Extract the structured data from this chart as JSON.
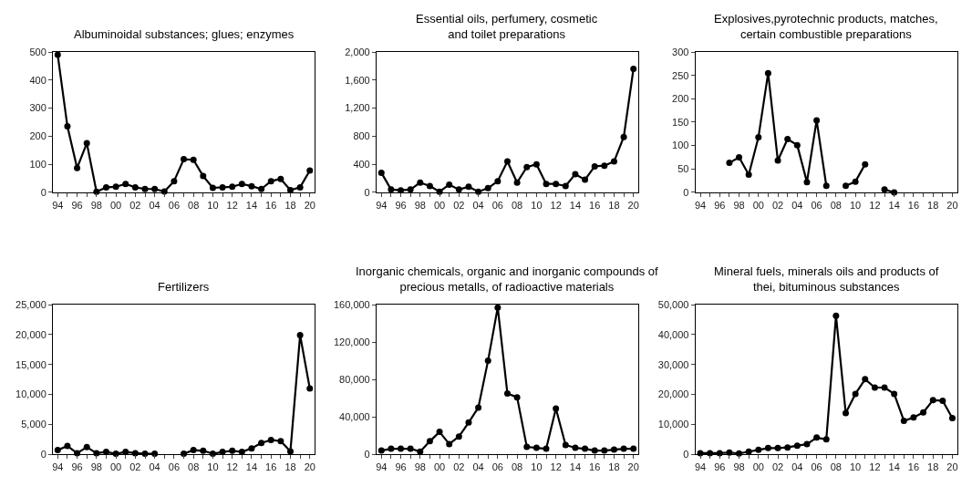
{
  "chart_data": [
    {
      "type": "line",
      "title": "Albuminoidal substances; glues; enzymes",
      "categories": [
        "94",
        null,
        "96",
        null,
        "98",
        null,
        "00",
        null,
        "02",
        null,
        "04",
        null,
        "06",
        null,
        "08",
        null,
        "10",
        null,
        "12",
        null,
        "14",
        null,
        "16",
        null,
        "18",
        null,
        "20"
      ],
      "series": [
        {
          "color": "#000000",
          "values": [
            490,
            235,
            87,
            175,
            2,
            18,
            20,
            30,
            18,
            12,
            12,
            3,
            40,
            118,
            116,
            58,
            16,
            18,
            20,
            30,
            22,
            12,
            40,
            48,
            8,
            18,
            78
          ]
        }
      ],
      "ylim": [
        0,
        500
      ],
      "yticks": [
        0,
        100,
        200,
        300,
        400,
        500
      ],
      "marker": "circle",
      "line_style": "solid"
    },
    {
      "type": "line",
      "title": "Essential oils, perfumery, cosmetic\nand toilet preparations",
      "categories": [
        "94",
        null,
        "96",
        null,
        "98",
        null,
        "00",
        null,
        "02",
        null,
        "04",
        null,
        "06",
        null,
        "08",
        null,
        "10",
        null,
        "12",
        null,
        "14",
        null,
        "16",
        null,
        "18",
        null,
        "20"
      ],
      "series": [
        {
          "color": "#000000",
          "values": [
            280,
            40,
            30,
            40,
            140,
            90,
            10,
            110,
            40,
            80,
            10,
            60,
            160,
            440,
            140,
            360,
            400,
            120,
            120,
            90,
            260,
            180,
            370,
            380,
            440,
            790,
            1760
          ]
        }
      ],
      "ylim": [
        0,
        2000
      ],
      "yticks": [
        0,
        {
          "value": 400,
          "label": "400"
        },
        {
          "value": 800,
          "label": "800"
        },
        {
          "value": 1200,
          "label": "1,200"
        },
        {
          "value": 1600,
          "label": "1,600"
        },
        {
          "value": 2000,
          "label": "2,000"
        }
      ],
      "marker": "circle",
      "line_style": "solid"
    },
    {
      "type": "line",
      "title": "Explosives,pyrotechnic products, matches,\ncertain combustible preparations",
      "categories": [
        "94",
        null,
        "96",
        null,
        "98",
        null,
        "00",
        null,
        "02",
        null,
        "04",
        null,
        "06",
        null,
        "08",
        null,
        "10",
        null,
        "12",
        null,
        "14",
        null,
        "16",
        null,
        "18",
        null,
        "20"
      ],
      "series": [
        {
          "color": "#000000",
          "values": [
            null,
            null,
            null,
            63,
            75,
            38,
            118,
            255,
            68,
            114,
            101,
            22,
            154,
            14,
            null,
            14,
            23,
            60,
            null,
            6,
            0,
            null,
            null,
            null,
            null,
            null,
            null
          ]
        }
      ],
      "ylim": [
        0,
        300
      ],
      "yticks": [
        0,
        50,
        100,
        150,
        200,
        250,
        300
      ],
      "marker": "circle",
      "line_style": "solid"
    },
    {
      "type": "line",
      "title": "Fertilizers",
      "categories": [
        "94",
        null,
        "96",
        null,
        "98",
        null,
        "00",
        null,
        "02",
        null,
        "04",
        null,
        "06",
        null,
        "08",
        null,
        "10",
        null,
        "12",
        null,
        "14",
        null,
        "16",
        null,
        "18",
        null,
        "20"
      ],
      "series": [
        {
          "color": "#000000",
          "values": [
            700,
            1400,
            200,
            1200,
            200,
            400,
            100,
            400,
            200,
            100,
            100,
            null,
            null,
            100,
            700,
            600,
            100,
            400,
            600,
            400,
            1000,
            1900,
            2400,
            2200,
            500,
            19900,
            11000
          ]
        }
      ],
      "ylim": [
        0,
        25000
      ],
      "yticks": [
        0,
        {
          "value": 5000,
          "label": "5,000"
        },
        {
          "value": 10000,
          "label": "10,000"
        },
        {
          "value": 15000,
          "label": "15,000"
        },
        {
          "value": 20000,
          "label": "20,000"
        },
        {
          "value": 25000,
          "label": "25,000"
        }
      ],
      "marker": "circle",
      "line_style": "solid"
    },
    {
      "type": "line",
      "title": "Inorganic chemicals, organic and inorganic compounds of\nprecious metalls, of radioactive materials",
      "categories": [
        "94",
        null,
        "96",
        null,
        "98",
        null,
        "00",
        null,
        "02",
        null,
        "04",
        null,
        "06",
        null,
        "08",
        null,
        "10",
        null,
        "12",
        null,
        "14",
        null,
        "16",
        null,
        "18",
        null,
        "20"
      ],
      "series": [
        {
          "color": "#000000",
          "values": [
            4000,
            6000,
            6000,
            6000,
            3000,
            14000,
            24000,
            11000,
            19000,
            34000,
            50000,
            100000,
            157000,
            65000,
            61000,
            8000,
            7000,
            6000,
            49000,
            10000,
            7000,
            6000,
            4000,
            4000,
            5000,
            6000,
            6000
          ]
        }
      ],
      "ylim": [
        0,
        160000
      ],
      "yticks": [
        0,
        {
          "value": 40000,
          "label": "40,000"
        },
        {
          "value": 80000,
          "label": "80,000"
        },
        {
          "value": 120000,
          "label": "120,000"
        },
        {
          "value": 160000,
          "label": "160,000"
        }
      ],
      "marker": "circle",
      "line_style": "solid"
    },
    {
      "type": "line",
      "title": "Mineral fuels, minerals oils and products of\nthei, bituminous substances",
      "categories": [
        "94",
        null,
        "96",
        null,
        "98",
        null,
        "00",
        null,
        "02",
        null,
        "04",
        null,
        "06",
        null,
        "08",
        null,
        "10",
        null,
        "12",
        null,
        "14",
        null,
        "16",
        null,
        "18",
        null,
        "20"
      ],
      "series": [
        {
          "color": "#000000",
          "values": [
            400,
            400,
            400,
            600,
            300,
            900,
            1500,
            2100,
            2100,
            2300,
            2900,
            3400,
            5600,
            5000,
            46300,
            13800,
            20200,
            25100,
            22300,
            22300,
            20200,
            11200,
            12300,
            14000,
            18100,
            17900,
            12100
          ]
        }
      ],
      "ylim": [
        0,
        50000
      ],
      "yticks": [
        0,
        {
          "value": 10000,
          "label": "10,000"
        },
        {
          "value": 20000,
          "label": "20,000"
        },
        {
          "value": 30000,
          "label": "30,000"
        },
        {
          "value": 40000,
          "label": "40,000"
        },
        {
          "value": 50000,
          "label": "50,000"
        }
      ],
      "marker": "circle",
      "line_style": "solid"
    }
  ]
}
